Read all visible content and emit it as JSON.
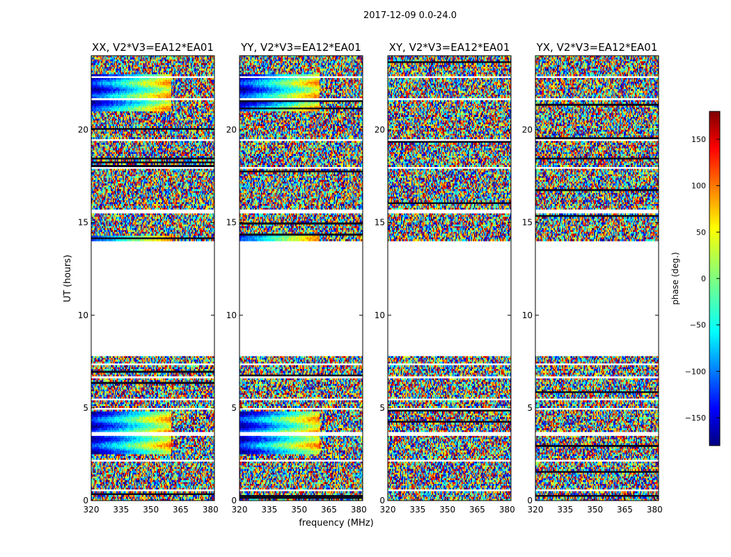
{
  "figure": {
    "suptitle": "2017-12-09 0.0-24.0"
  },
  "chart_data": {
    "type": "heatmap",
    "title": "2017-12-09 0.0-24.0",
    "xlabel": "frequency (MHz)",
    "ylabel": "UT (hours)",
    "xlim": [
      320,
      382
    ],
    "ylim": [
      0,
      24
    ],
    "xticks": [
      320,
      335,
      350,
      365,
      380
    ],
    "yticks": [
      0,
      5,
      10,
      15,
      20
    ],
    "colorbar": {
      "label": "phase (deg.)",
      "range": [
        -180,
        180
      ],
      "ticks": [
        150,
        100,
        50,
        0,
        -50,
        -100,
        -150
      ],
      "colormap": "jet"
    },
    "flagged_ut_range": [
      7.8,
      14.0
    ],
    "panels": [
      {
        "title": "XX, V2*V3=EA12*EA01",
        "pol": "XX"
      },
      {
        "title": "YY, V2*V3=EA12*EA01",
        "pol": "YY"
      },
      {
        "title": "XY, V2*V3=EA12*EA01",
        "pol": "XY"
      },
      {
        "title": "YX, V2*V3=EA12*EA01",
        "pol": "YX"
      }
    ]
  },
  "colors": {
    "jet": [
      "#00007f",
      "#0000ff",
      "#007fff",
      "#00ffff",
      "#7fff7f",
      "#ffff00",
      "#ff7f00",
      "#ff0000",
      "#7f0000"
    ]
  }
}
